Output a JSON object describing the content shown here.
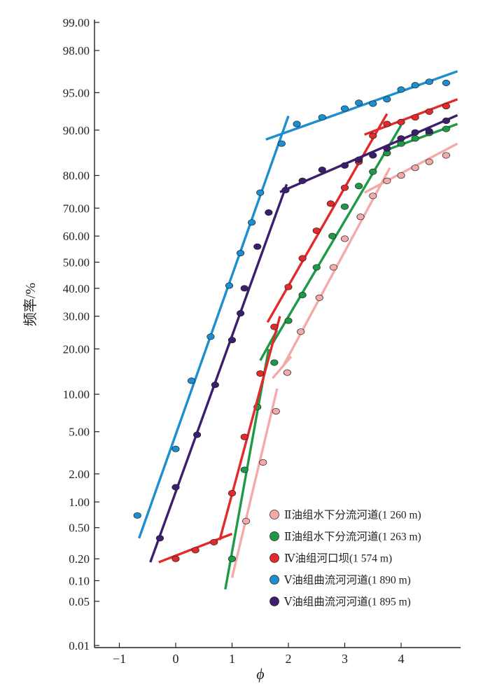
{
  "chart_data": {
    "type": "line",
    "ylabel": "频率/%",
    "xlabel": "ϕ",
    "yscale": "probability",
    "xlim": [
      -1.5,
      5.0
    ],
    "ylim": [
      0.01,
      99.0
    ],
    "x_ticks": [
      "−1",
      "0",
      "1",
      "2",
      "3",
      "4"
    ],
    "x_tick_values": [
      -1,
      0,
      1,
      2,
      3,
      4
    ],
    "y_ticks": [
      "99.00",
      "98.00",
      "95.00",
      "90.00",
      "80.00",
      "70.00",
      "60.00",
      "50.00",
      "40.00",
      "30.00",
      "20.00",
      "10.00",
      "5.00",
      "2.00",
      "1.00",
      "0.50",
      "0.20",
      "0.10",
      "0.05",
      "0.01"
    ],
    "y_tick_values": [
      99,
      98,
      95,
      90,
      80,
      70,
      60,
      50,
      40,
      30,
      20,
      10,
      5,
      2,
      1,
      0.5,
      0.2,
      0.1,
      0.05,
      0.01
    ],
    "legend_position": "bottom-right",
    "series": [
      {
        "name": "Ⅱ油组水下分流河道(1 260 m)",
        "color": "#f3aaa8",
        "points": [
          [
            1.25,
            0.6
          ],
          [
            1.55,
            2.6
          ],
          [
            1.78,
            7.4
          ],
          [
            1.98,
            14.2
          ],
          [
            2.22,
            25.0
          ],
          [
            2.55,
            36.5
          ],
          [
            2.8,
            48.0
          ],
          [
            3.0,
            59.0
          ],
          [
            3.28,
            67.0
          ],
          [
            3.5,
            74.0
          ],
          [
            3.75,
            78.5
          ],
          [
            4.0,
            80.0
          ],
          [
            4.25,
            82.0
          ],
          [
            4.5,
            83.5
          ],
          [
            4.8,
            85.0
          ]
        ],
        "segments": [
          [
            [
              1.0,
              0.11
            ],
            [
              1.8,
              11.0
            ]
          ],
          [
            [
              1.72,
              13.0
            ],
            [
              2.05,
              18.0
            ]
          ],
          [
            [
              1.9,
              15.5
            ],
            [
              3.8,
              82.0
            ]
          ],
          [
            [
              3.35,
              75.0
            ],
            [
              5.0,
              87.5
            ]
          ]
        ]
      },
      {
        "name": "Ⅱ油组水下分流河道(1 263 m)",
        "color": "#1e9a46",
        "points": [
          [
            1.0,
            0.2
          ],
          [
            1.22,
            2.2
          ],
          [
            1.45,
            8.0
          ],
          [
            1.75,
            16.5
          ],
          [
            2.0,
            28.5
          ],
          [
            2.25,
            37.5
          ],
          [
            2.5,
            48.0
          ],
          [
            2.78,
            60.0
          ],
          [
            3.0,
            70.5
          ],
          [
            3.25,
            77.0
          ],
          [
            3.5,
            81.0
          ],
          [
            3.75,
            85.5
          ],
          [
            4.0,
            87.5
          ],
          [
            4.25,
            88.5
          ],
          [
            4.5,
            89.5
          ],
          [
            4.8,
            90.2
          ]
        ],
        "segments": [
          [
            [
              0.88,
              0.075
            ],
            [
              1.65,
              20.0
            ]
          ],
          [
            [
              1.5,
              17.0
            ],
            [
              1.8,
              25.5
            ]
          ],
          [
            [
              1.7,
              21.0
            ],
            [
              4.0,
              90.8
            ]
          ],
          [
            [
              3.7,
              86.0
            ],
            [
              5.0,
              91.0
            ]
          ]
        ]
      },
      {
        "name": "Ⅳ油组河口坝(1 574 m)",
        "color": "#e32a2a",
        "points": [
          [
            0.0,
            0.2
          ],
          [
            0.35,
            0.26
          ],
          [
            0.68,
            0.33
          ],
          [
            1.0,
            1.25
          ],
          [
            1.22,
            4.5
          ],
          [
            1.5,
            14.0
          ],
          [
            1.75,
            26.5
          ],
          [
            2.0,
            40.5
          ],
          [
            2.25,
            51.5
          ],
          [
            2.5,
            62.0
          ],
          [
            2.75,
            71.5
          ],
          [
            3.0,
            76.5
          ],
          [
            3.25,
            83.5
          ],
          [
            3.5,
            89.0
          ],
          [
            3.75,
            91.0
          ],
          [
            4.0,
            91.3
          ],
          [
            4.25,
            92.0
          ],
          [
            4.5,
            92.8
          ],
          [
            4.8,
            93.5
          ]
        ],
        "segments": [
          [
            [
              -0.3,
              0.18
            ],
            [
              1.0,
              0.42
            ]
          ],
          [
            [
              0.78,
              0.35
            ],
            [
              1.85,
              30.0
            ]
          ],
          [
            [
              1.63,
              28.0
            ],
            [
              3.75,
              92.5
            ]
          ],
          [
            [
              3.35,
              89.2
            ],
            [
              5.0,
              94.3
            ]
          ]
        ]
      },
      {
        "name": "Ⅴ油组曲流河河道(1 890 m)",
        "color": "#1b8fcf",
        "points": [
          [
            -0.68,
            0.7
          ],
          [
            0.0,
            3.5
          ],
          [
            0.28,
            12.5
          ],
          [
            0.62,
            23.5
          ],
          [
            0.95,
            41.0
          ],
          [
            1.15,
            53.5
          ],
          [
            1.35,
            65.0
          ],
          [
            1.5,
            75.0
          ],
          [
            1.88,
            87.5
          ],
          [
            2.15,
            91.0
          ],
          [
            2.6,
            92.0
          ],
          [
            3.0,
            93.2
          ],
          [
            3.25,
            93.9
          ],
          [
            3.5,
            93.8
          ],
          [
            3.75,
            94.3
          ],
          [
            4.0,
            95.3
          ],
          [
            4.25,
            95.7
          ],
          [
            4.5,
            96.0
          ],
          [
            4.8,
            95.9
          ]
        ],
        "segments": [
          [
            [
              -0.65,
              0.37
            ],
            [
              2.0,
              92.2
            ]
          ],
          [
            [
              1.6,
              88.3
            ],
            [
              5.0,
              96.8
            ]
          ]
        ]
      },
      {
        "name": "Ⅴ油组曲流河河道(1 895 m)",
        "color": "#3b1f6e",
        "points": [
          [
            -0.28,
            0.37
          ],
          [
            0.0,
            1.45
          ],
          [
            0.38,
            4.7
          ],
          [
            0.7,
            11.7
          ],
          [
            1.0,
            22.5
          ],
          [
            1.15,
            31.0
          ],
          [
            1.22,
            40.0
          ],
          [
            1.45,
            56.0
          ],
          [
            1.65,
            68.5
          ],
          [
            1.95,
            75.8
          ],
          [
            2.25,
            78.5
          ],
          [
            2.6,
            81.5
          ],
          [
            3.0,
            82.6
          ],
          [
            3.25,
            84.0
          ],
          [
            3.5,
            85.0
          ],
          [
            3.75,
            86.5
          ],
          [
            4.0,
            88.5
          ],
          [
            4.25,
            89.6
          ],
          [
            4.5,
            89.8
          ],
          [
            4.8,
            91.5
          ]
        ],
        "segments": [
          [
            [
              -0.45,
              0.18
            ],
            [
              1.97,
              77.5
            ]
          ],
          [
            [
              1.85,
              75.2
            ],
            [
              5.0,
              92.3
            ]
          ]
        ]
      }
    ]
  }
}
